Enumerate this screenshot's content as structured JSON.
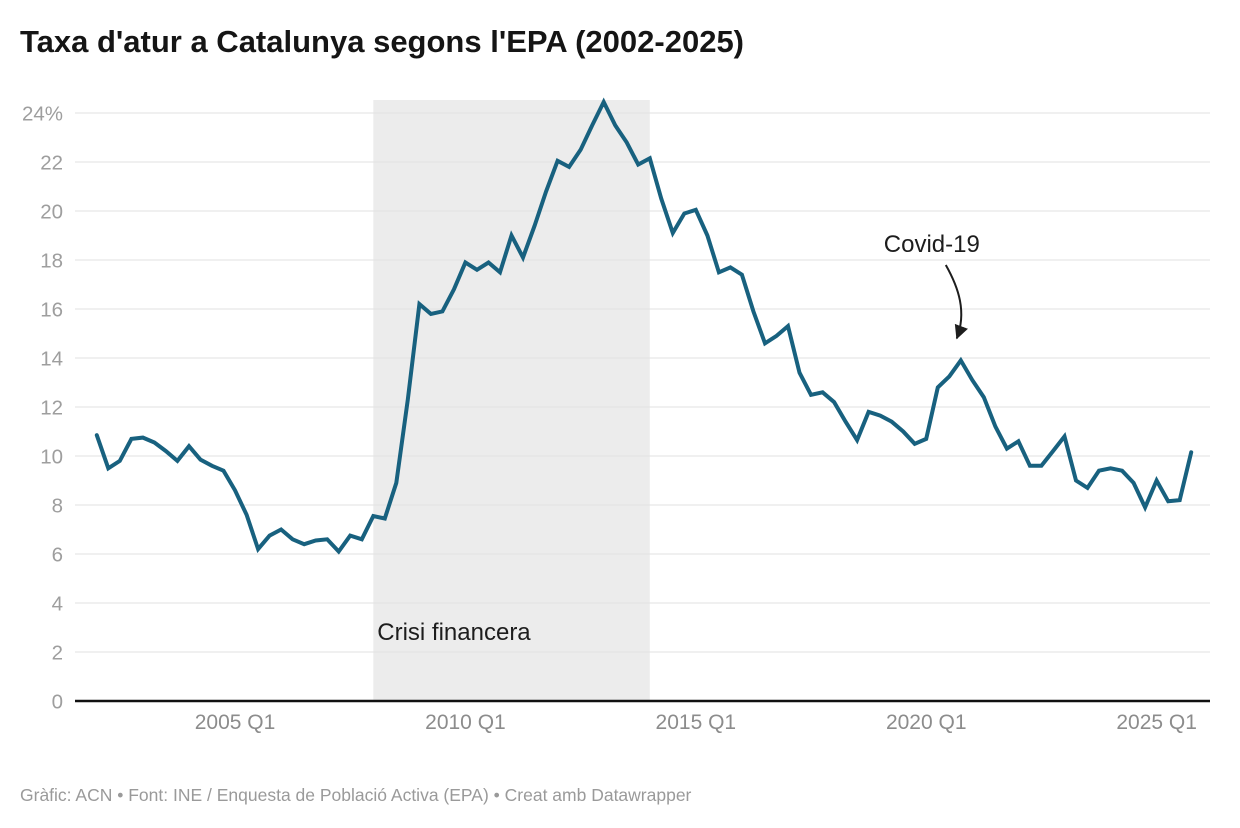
{
  "header": {
    "title": "Taxa d'atur a Catalunya segons l'EPA (2002-2025)"
  },
  "footer": {
    "text": "Gràfic: ACN • Font: INE / Enquesta de Població Activa (EPA) • Creat amb Datawrapper"
  },
  "colors": {
    "line": "#18617f",
    "band": "#ececec",
    "gridline": "#e2e2e2",
    "axis_line": "#111111",
    "y_label": "#9e9e9e",
    "x_label": "#8c8c8c",
    "annotation_text": "#1d1d1d",
    "title_text": "#151515",
    "footer_text": "#9a9a9a"
  },
  "chart_data": {
    "type": "line",
    "title": "Taxa d'atur a Catalunya segons l'EPA (2002-2025)",
    "series_name": "Taxa d'atur (%)",
    "unit": "%",
    "frequency": "quarterly",
    "x_start": "2002 Q1",
    "x_end": "2025 Q4",
    "ylim": [
      0,
      24
    ],
    "grid": "horizontal",
    "legend": "none",
    "y_ticks": [
      0,
      2,
      4,
      6,
      8,
      10,
      12,
      14,
      16,
      18,
      20,
      22,
      24
    ],
    "y_tick_labels": [
      "0",
      "2",
      "4",
      "6",
      "8",
      "10",
      "12",
      "14",
      "16",
      "18",
      "20",
      "22",
      "24%"
    ],
    "x_ticks": [
      "2005 Q1",
      "2010 Q1",
      "2015 Q1",
      "2020 Q1",
      "2025 Q1"
    ],
    "quarters": [
      "2002 Q1",
      "2002 Q2",
      "2002 Q3",
      "2002 Q4",
      "2003 Q1",
      "2003 Q2",
      "2003 Q3",
      "2003 Q4",
      "2004 Q1",
      "2004 Q2",
      "2004 Q3",
      "2004 Q4",
      "2005 Q1",
      "2005 Q2",
      "2005 Q3",
      "2005 Q4",
      "2006 Q1",
      "2006 Q2",
      "2006 Q3",
      "2006 Q4",
      "2007 Q1",
      "2007 Q2",
      "2007 Q3",
      "2007 Q4",
      "2008 Q1",
      "2008 Q2",
      "2008 Q3",
      "2008 Q4",
      "2009 Q1",
      "2009 Q2",
      "2009 Q3",
      "2009 Q4",
      "2010 Q1",
      "2010 Q2",
      "2010 Q3",
      "2010 Q4",
      "2011 Q1",
      "2011 Q2",
      "2011 Q3",
      "2011 Q4",
      "2012 Q1",
      "2012 Q2",
      "2012 Q3",
      "2012 Q4",
      "2013 Q1",
      "2013 Q2",
      "2013 Q3",
      "2013 Q4",
      "2014 Q1",
      "2014 Q2",
      "2014 Q3",
      "2014 Q4",
      "2015 Q1",
      "2015 Q2",
      "2015 Q3",
      "2015 Q4",
      "2016 Q1",
      "2016 Q2",
      "2016 Q3",
      "2016 Q4",
      "2017 Q1",
      "2017 Q2",
      "2017 Q3",
      "2017 Q4",
      "2018 Q1",
      "2018 Q2",
      "2018 Q3",
      "2018 Q4",
      "2019 Q1",
      "2019 Q2",
      "2019 Q3",
      "2019 Q4",
      "2020 Q1",
      "2020 Q2",
      "2020 Q3",
      "2020 Q4",
      "2021 Q1",
      "2021 Q2",
      "2021 Q3",
      "2021 Q4",
      "2022 Q1",
      "2022 Q2",
      "2022 Q3",
      "2022 Q4",
      "2023 Q1",
      "2023 Q2",
      "2023 Q3",
      "2023 Q4",
      "2024 Q1",
      "2024 Q2",
      "2024 Q3",
      "2024 Q4",
      "2025 Q1",
      "2025 Q2",
      "2025 Q3",
      "2025 Q4"
    ],
    "values": [
      10.85,
      9.5,
      9.8,
      10.7,
      10.75,
      10.55,
      10.2,
      9.8,
      10.4,
      9.85,
      9.6,
      9.4,
      8.6,
      7.6,
      6.2,
      6.75,
      7.0,
      6.6,
      6.4,
      6.55,
      6.6,
      6.1,
      6.75,
      6.6,
      7.55,
      7.45,
      8.9,
      12.3,
      16.2,
      15.8,
      15.9,
      16.8,
      17.9,
      17.6,
      17.9,
      17.5,
      19.0,
      18.1,
      19.4,
      20.8,
      22.05,
      21.8,
      22.5,
      23.5,
      24.45,
      23.5,
      22.8,
      21.9,
      22.15,
      20.5,
      19.1,
      19.9,
      20.05,
      19.0,
      17.5,
      17.7,
      17.4,
      15.9,
      14.6,
      14.9,
      15.3,
      13.4,
      12.5,
      12.6,
      12.2,
      11.4,
      10.65,
      11.8,
      11.65,
      11.4,
      11.0,
      10.5,
      10.7,
      12.8,
      13.25,
      13.9,
      13.1,
      12.4,
      11.2,
      10.3,
      10.6,
      9.6,
      9.6,
      10.2,
      10.8,
      9.0,
      8.7,
      9.4,
      9.5,
      9.4,
      8.9,
      7.9,
      9.0,
      8.15,
      8.2,
      10.15
    ],
    "annotations": {
      "band": {
        "label": "Crisi financera",
        "from": "2008 Q1",
        "to": "2014 Q1"
      },
      "arrow": {
        "label": "Covid-19",
        "points_to": "2020 Q4",
        "value_at_target": 13.9
      }
    }
  }
}
